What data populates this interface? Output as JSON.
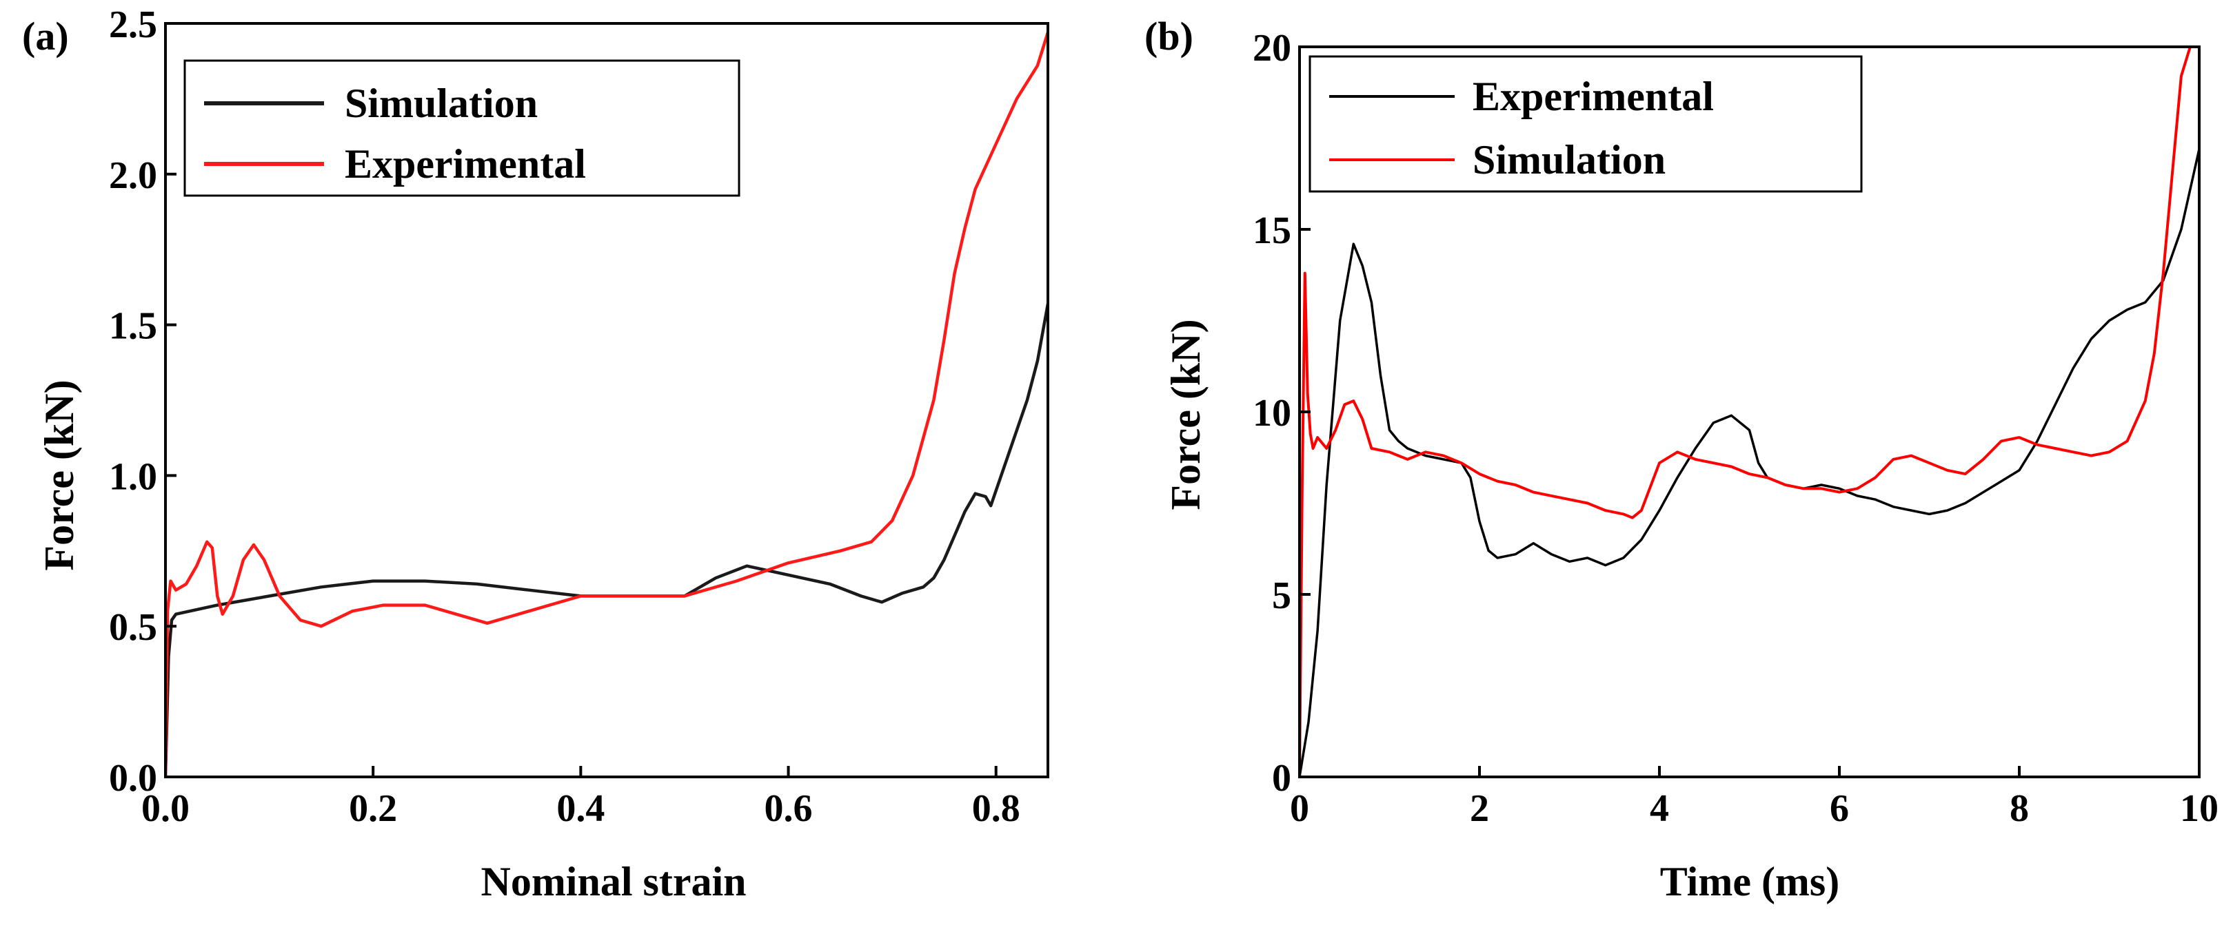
{
  "chart_data": [
    {
      "type": "line",
      "panel_label": "(a)",
      "xlabel": "Nominal strain",
      "ylabel": "Force (kN)",
      "xlim": [
        0.0,
        0.85
      ],
      "ylim": [
        0.0,
        2.5
      ],
      "xticks": [
        0.0,
        0.2,
        0.4,
        0.6,
        0.8
      ],
      "xtick_labels": [
        "0.0",
        "0.2",
        "0.4",
        "0.6",
        "0.8"
      ],
      "yticks": [
        0.0,
        0.5,
        1.0,
        1.5,
        2.0,
        2.5
      ],
      "ytick_labels": [
        "0.0",
        "0.5",
        "1.0",
        "1.5",
        "2.0",
        "2.5"
      ],
      "legend": {
        "position": "top-left",
        "entries": [
          "Simulation",
          "Experimental"
        ]
      },
      "series": [
        {
          "name": "Simulation",
          "color": "#1a1a1a",
          "x": [
            0.0,
            0.003,
            0.006,
            0.01,
            0.05,
            0.1,
            0.15,
            0.2,
            0.25,
            0.3,
            0.35,
            0.4,
            0.45,
            0.5,
            0.53,
            0.56,
            0.6,
            0.64,
            0.67,
            0.69,
            0.71,
            0.73,
            0.74,
            0.75,
            0.76,
            0.77,
            0.78,
            0.79,
            0.795,
            0.8,
            0.81,
            0.82,
            0.83,
            0.84,
            0.85
          ],
          "y": [
            0.0,
            0.4,
            0.52,
            0.54,
            0.57,
            0.6,
            0.63,
            0.65,
            0.65,
            0.64,
            0.62,
            0.6,
            0.6,
            0.6,
            0.66,
            0.7,
            0.67,
            0.64,
            0.6,
            0.58,
            0.61,
            0.63,
            0.66,
            0.72,
            0.8,
            0.88,
            0.94,
            0.93,
            0.9,
            0.95,
            1.05,
            1.15,
            1.25,
            1.38,
            1.57
          ]
        },
        {
          "name": "Experimental",
          "color": "#ff1a1a",
          "x": [
            0.0,
            0.002,
            0.005,
            0.01,
            0.02,
            0.03,
            0.04,
            0.045,
            0.05,
            0.055,
            0.065,
            0.075,
            0.085,
            0.095,
            0.11,
            0.13,
            0.15,
            0.18,
            0.21,
            0.25,
            0.28,
            0.31,
            0.35,
            0.4,
            0.45,
            0.5,
            0.55,
            0.6,
            0.65,
            0.68,
            0.7,
            0.72,
            0.74,
            0.75,
            0.76,
            0.77,
            0.78,
            0.8,
            0.82,
            0.84,
            0.85
          ],
          "y": [
            0.0,
            0.55,
            0.65,
            0.62,
            0.64,
            0.7,
            0.78,
            0.76,
            0.6,
            0.54,
            0.6,
            0.72,
            0.77,
            0.72,
            0.6,
            0.52,
            0.5,
            0.55,
            0.57,
            0.57,
            0.54,
            0.51,
            0.55,
            0.6,
            0.6,
            0.6,
            0.65,
            0.71,
            0.75,
            0.78,
            0.85,
            1.0,
            1.25,
            1.45,
            1.67,
            1.82,
            1.95,
            2.1,
            2.25,
            2.36,
            2.47
          ]
        }
      ]
    },
    {
      "type": "line",
      "panel_label": "(b)",
      "xlabel": "Time (ms)",
      "ylabel": "Force (kN)",
      "xlim": [
        0,
        10
      ],
      "ylim": [
        0,
        20
      ],
      "xticks": [
        0,
        2,
        4,
        6,
        8,
        10
      ],
      "xtick_labels": [
        "0",
        "2",
        "4",
        "6",
        "8",
        "10"
      ],
      "yticks": [
        0,
        5,
        10,
        15,
        20
      ],
      "ytick_labels": [
        "0",
        "5",
        "10",
        "15",
        "20"
      ],
      "legend": {
        "position": "top-left",
        "entries": [
          "Experimental",
          "Simulation"
        ]
      },
      "series": [
        {
          "name": "Experimental",
          "color": "#000000",
          "x": [
            0,
            0.1,
            0.2,
            0.3,
            0.45,
            0.6,
            0.7,
            0.8,
            0.9,
            1.0,
            1.1,
            1.2,
            1.4,
            1.6,
            1.8,
            1.9,
            2.0,
            2.1,
            2.2,
            2.4,
            2.6,
            2.8,
            3.0,
            3.2,
            3.4,
            3.6,
            3.8,
            4.0,
            4.2,
            4.4,
            4.6,
            4.8,
            5.0,
            5.1,
            5.2,
            5.4,
            5.6,
            5.8,
            6.0,
            6.2,
            6.4,
            6.6,
            6.8,
            7.0,
            7.2,
            7.4,
            7.6,
            7.8,
            8.0,
            8.2,
            8.4,
            8.6,
            8.8,
            9.0,
            9.2,
            9.4,
            9.6,
            9.8,
            10.0
          ],
          "y": [
            0,
            1.5,
            4.0,
            8.0,
            12.5,
            14.6,
            14.0,
            13.0,
            11.0,
            9.5,
            9.2,
            9.0,
            8.8,
            8.7,
            8.6,
            8.2,
            7.0,
            6.2,
            6.0,
            6.1,
            6.4,
            6.1,
            5.9,
            6.0,
            5.8,
            6.0,
            6.5,
            7.3,
            8.2,
            9.0,
            9.7,
            9.9,
            9.5,
            8.6,
            8.2,
            8.0,
            7.9,
            8.0,
            7.9,
            7.7,
            7.6,
            7.4,
            7.3,
            7.2,
            7.3,
            7.5,
            7.8,
            8.1,
            8.4,
            9.2,
            10.2,
            11.2,
            12.0,
            12.5,
            12.8,
            13.0,
            13.6,
            15.0,
            17.2
          ]
        },
        {
          "name": "Simulation",
          "color": "#ff0000",
          "x": [
            0,
            0.03,
            0.06,
            0.09,
            0.12,
            0.15,
            0.2,
            0.3,
            0.4,
            0.5,
            0.6,
            0.7,
            0.8,
            1.0,
            1.2,
            1.4,
            1.6,
            1.8,
            2.0,
            2.2,
            2.4,
            2.6,
            2.8,
            3.0,
            3.2,
            3.4,
            3.6,
            3.7,
            3.8,
            4.0,
            4.2,
            4.4,
            4.6,
            4.8,
            5.0,
            5.2,
            5.4,
            5.6,
            5.8,
            6.0,
            6.2,
            6.4,
            6.6,
            6.8,
            7.0,
            7.2,
            7.4,
            7.6,
            7.8,
            8.0,
            8.2,
            8.4,
            8.6,
            8.8,
            9.0,
            9.2,
            9.4,
            9.5,
            9.6,
            9.7,
            9.8,
            9.9
          ],
          "y": [
            0,
            8.0,
            13.8,
            10.5,
            9.4,
            9.0,
            9.3,
            9.0,
            9.5,
            10.2,
            10.3,
            9.8,
            9.0,
            8.9,
            8.7,
            8.9,
            8.8,
            8.6,
            8.3,
            8.1,
            8.0,
            7.8,
            7.7,
            7.6,
            7.5,
            7.3,
            7.2,
            7.1,
            7.3,
            8.6,
            8.9,
            8.7,
            8.6,
            8.5,
            8.3,
            8.2,
            8.0,
            7.9,
            7.9,
            7.8,
            7.9,
            8.2,
            8.7,
            8.8,
            8.6,
            8.4,
            8.3,
            8.7,
            9.2,
            9.3,
            9.1,
            9.0,
            8.9,
            8.8,
            8.9,
            9.2,
            10.3,
            11.6,
            13.8,
            16.5,
            19.2,
            20.0
          ]
        }
      ]
    }
  ]
}
